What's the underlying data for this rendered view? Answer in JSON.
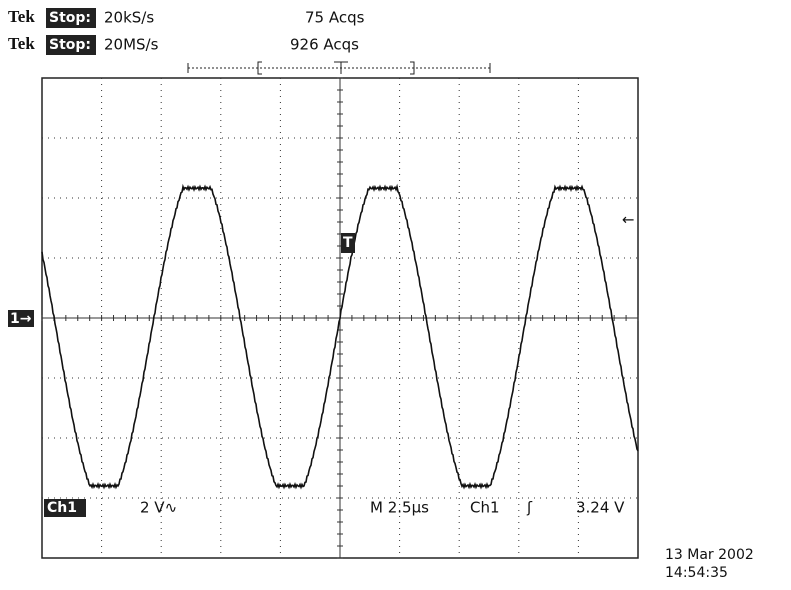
{
  "header": {
    "line1": {
      "brand": "Tek",
      "state": "Stop:",
      "rate": "20kS/s",
      "acqs": "75 Acqs"
    },
    "line2": {
      "brand": "Tek",
      "state": "Stop:",
      "rate": "20MS/s",
      "acqs": "926 Acqs"
    }
  },
  "readout": {
    "channel": "Ch1",
    "scale": "2 V∿",
    "timebase": "M 2.5µs",
    "trigger_source": "Ch1",
    "trigger_slope": "ʃ",
    "trigger_level": "3.24 V"
  },
  "markers": {
    "channel": "1→",
    "trigger": "T",
    "level": "←"
  },
  "timestamp": {
    "date": "13 Mar 2002",
    "time": "14:54:35"
  }
}
